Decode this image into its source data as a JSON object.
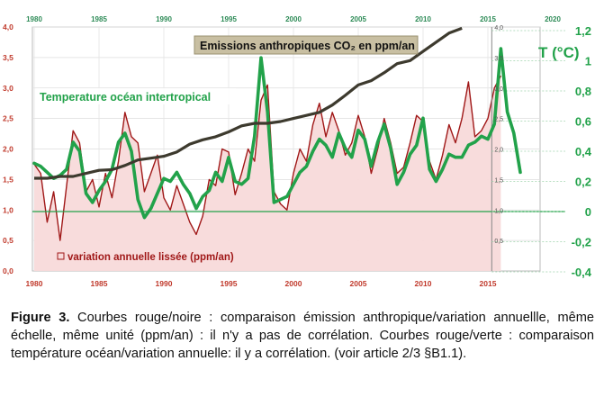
{
  "caption": {
    "label": "Figure 3.",
    "text": " Courbes rouge/noire : comparaison émission anthropique/variation annuellle, même échelle, même unité (ppm/an) : il n'y a pas de corrélation. Courbes rouge/verte : comparaison température océan/variation annuelle: il y a corrélation. (voir article 2/3 §B1.1)."
  },
  "chart_data": {
    "type": "line",
    "title": "",
    "annotations": {
      "co2": "Emissions anthropiques CO₂ en  ppm/an",
      "temp": "Temperature océan  intertropical",
      "variation": "variation annuelle lissée (ppm/an)"
    },
    "left_axis": {
      "ylim": [
        0,
        4
      ],
      "ticks": [
        "0,0",
        "0,5",
        "1,0",
        "1,5",
        "2,0",
        "2,5",
        "3,0",
        "3,5",
        "4,0"
      ]
    },
    "inner_axis": {
      "ticks": [
        "0,5",
        "1,0",
        "1,5",
        "2,0",
        "2,5",
        "3,0",
        "3,5",
        "4,0"
      ]
    },
    "right_axis": {
      "label": "T (°C)",
      "ylim": [
        -0.4,
        1.2
      ],
      "ticks": [
        "-0,4",
        "-0,2",
        "0",
        "0,2",
        "0,4",
        "0,6",
        "0,8",
        "1",
        "1,2"
      ]
    },
    "x_bottom_ticks": [
      "1980",
      "1985",
      "1990",
      "1995",
      "2000",
      "2005",
      "2010",
      "2015"
    ],
    "x_top_ticks": [
      "1980",
      "1985",
      "1990",
      "1995",
      "2000",
      "2005",
      "2010",
      "2015",
      "2020"
    ],
    "colors": {
      "co2": "#3d3a2e",
      "temp": "#22a24a",
      "variation": "#a01818",
      "fill": "#f8dada",
      "axis_left": "#c0392b",
      "axis_right": "#22a24a"
    },
    "series": [
      {
        "name": "Emissions anthropiques CO2",
        "x": [
          1980,
          1981,
          1982,
          1983,
          1984,
          1985,
          1986,
          1987,
          1988,
          1989,
          1990,
          1991,
          1992,
          1993,
          1994,
          1995,
          1996,
          1997,
          1998,
          1999,
          2000,
          2001,
          2002,
          2003,
          2004,
          2005,
          2006,
          2007,
          2008,
          2009,
          2010,
          2011,
          2012,
          2013
        ],
        "y": [
          1.52,
          1.52,
          1.55,
          1.55,
          1.6,
          1.65,
          1.66,
          1.73,
          1.82,
          1.85,
          1.88,
          1.95,
          2.08,
          2.15,
          2.2,
          2.28,
          2.38,
          2.42,
          2.42,
          2.45,
          2.5,
          2.55,
          2.6,
          2.72,
          2.88,
          3.05,
          3.12,
          3.25,
          3.4,
          3.45,
          3.6,
          3.75,
          3.9,
          3.98
        ]
      },
      {
        "name": "Temperature océan intertropical",
        "x": [
          1980,
          1980.5,
          1981,
          1981.5,
          1982,
          1982.5,
          1983,
          1983.5,
          1984,
          1984.5,
          1985,
          1985.5,
          1986,
          1986.5,
          1987,
          1987.5,
          1988,
          1988.5,
          1989,
          1989.5,
          1990,
          1990.5,
          1991,
          1991.5,
          1992,
          1992.5,
          1993,
          1993.5,
          1994,
          1994.5,
          1995,
          1995.5,
          1996,
          1996.5,
          1997,
          1997.5,
          1998,
          1998.5,
          1999,
          1999.5,
          2000,
          2000.5,
          2001,
          2001.5,
          2002,
          2002.5,
          2003,
          2003.5,
          2004,
          2004.5,
          2005,
          2005.5,
          2006,
          2006.5,
          2007,
          2007.5,
          2008,
          2008.5,
          2009,
          2009.5,
          2010,
          2010.5,
          2011,
          2011.5,
          2012,
          2012.5,
          2013,
          2013.5,
          2014,
          2014.5,
          2015,
          2015.5,
          2016,
          2016.5,
          2017,
          2017.5
        ],
        "y": [
          0.32,
          0.3,
          0.26,
          0.22,
          0.24,
          0.28,
          0.46,
          0.4,
          0.12,
          0.06,
          0.14,
          0.2,
          0.28,
          0.46,
          0.52,
          0.4,
          0.08,
          -0.04,
          0.02,
          0.12,
          0.22,
          0.2,
          0.26,
          0.18,
          0.12,
          0.02,
          0.1,
          0.14,
          0.26,
          0.2,
          0.36,
          0.2,
          0.18,
          0.22,
          0.5,
          1.02,
          0.66,
          0.06,
          0.08,
          0.1,
          0.18,
          0.26,
          0.3,
          0.4,
          0.48,
          0.44,
          0.36,
          0.52,
          0.42,
          0.36,
          0.54,
          0.48,
          0.3,
          0.46,
          0.58,
          0.42,
          0.18,
          0.26,
          0.38,
          0.44,
          0.62,
          0.28,
          0.2,
          0.28,
          0.38,
          0.36,
          0.36,
          0.44,
          0.46,
          0.5,
          0.48,
          0.58,
          1.08,
          0.66,
          0.52,
          0.26
        ]
      },
      {
        "name": "variation annuelle lissée",
        "x": [
          1980,
          1980.5,
          1981,
          1981.5,
          1982,
          1982.5,
          1983,
          1983.5,
          1984,
          1984.5,
          1985,
          1985.5,
          1986,
          1986.5,
          1987,
          1987.5,
          1988,
          1988.5,
          1989,
          1989.5,
          1990,
          1990.5,
          1991,
          1991.5,
          1992,
          1992.5,
          1993,
          1993.5,
          1994,
          1994.5,
          1995,
          1995.5,
          1996,
          1996.5,
          1997,
          1997.5,
          1998,
          1998.5,
          1999,
          1999.5,
          2000,
          2000.5,
          2001,
          2001.5,
          2002,
          2002.5,
          2003,
          2003.5,
          2004,
          2004.5,
          2005,
          2005.5,
          2006,
          2006.5,
          2007,
          2007.5,
          2008,
          2008.5,
          2009,
          2009.5,
          2010,
          2010.5,
          2011,
          2011.5,
          2012,
          2012.5,
          2013,
          2013.5,
          2014,
          2014.5,
          2015,
          2015.5,
          2016
        ],
        "y": [
          1.75,
          1.6,
          0.8,
          1.3,
          0.5,
          1.4,
          2.3,
          2.1,
          1.3,
          1.5,
          1.05,
          1.6,
          1.2,
          1.8,
          2.6,
          2.2,
          2.1,
          1.3,
          1.6,
          1.9,
          1.2,
          1.0,
          1.4,
          1.1,
          0.8,
          0.6,
          0.9,
          1.5,
          1.4,
          2.0,
          1.95,
          1.25,
          1.6,
          2.0,
          1.8,
          2.8,
          3.05,
          1.3,
          1.1,
          1.0,
          1.6,
          2.0,
          1.8,
          2.4,
          2.75,
          2.2,
          2.6,
          2.3,
          1.9,
          2.1,
          2.55,
          2.2,
          1.6,
          2.0,
          2.5,
          2.1,
          1.6,
          1.7,
          2.1,
          2.55,
          2.45,
          1.8,
          1.5,
          1.9,
          2.4,
          2.1,
          2.5,
          3.1,
          2.2,
          2.3,
          2.5,
          3.0,
          3.2
        ]
      }
    ]
  }
}
